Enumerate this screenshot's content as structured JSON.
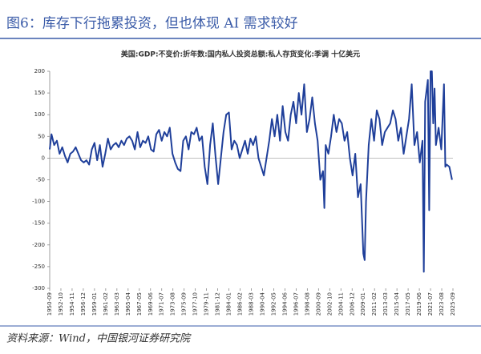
{
  "header": "图6：库存下行拖累投资，但也体现 AI 需求较好",
  "source": "资料来源：Wind，中国银河证券研究院",
  "chart_data": {
    "type": "line",
    "title": "美国:GDP:不变价:折年数:国内私人投资总额:私人存货变化:季调 十亿美元",
    "x": [
      1950.67,
      1951,
      1951.5,
      1952,
      1952.5,
      1953,
      1953.5,
      1954,
      1954.5,
      1955,
      1955.5,
      1956,
      1956.5,
      1957,
      1957.5,
      1958,
      1958.5,
      1959,
      1959.5,
      1960,
      1960.5,
      1961,
      1961.5,
      1962,
      1962.5,
      1963,
      1963.5,
      1964,
      1964.5,
      1965,
      1965.5,
      1966,
      1966.5,
      1967,
      1967.5,
      1968,
      1968.5,
      1969,
      1969.5,
      1970,
      1970.5,
      1971,
      1971.5,
      1972,
      1972.5,
      1973,
      1973.5,
      1974,
      1974.5,
      1975,
      1975.5,
      1976,
      1976.5,
      1977,
      1977.5,
      1978,
      1978.5,
      1979,
      1979.5,
      1980,
      1980.5,
      1981,
      1981.5,
      1982,
      1982.5,
      1983,
      1983.5,
      1984,
      1984.5,
      1985,
      1985.5,
      1986,
      1986.5,
      1987,
      1987.5,
      1988,
      1988.5,
      1989,
      1989.5,
      1990,
      1990.5,
      1991,
      1991.5,
      1992,
      1992.5,
      1993,
      1993.5,
      1994,
      1994.5,
      1995,
      1995.5,
      1996,
      1996.5,
      1997,
      1997.5,
      1998,
      1998.5,
      1999,
      1999.5,
      2000,
      2000.5,
      2001,
      2001.5,
      2001.75,
      2002,
      2002.5,
      2003,
      2003.5,
      2004,
      2004.5,
      2005,
      2005.5,
      2006,
      2006.5,
      2007,
      2007.5,
      2008,
      2008.5,
      2009,
      2009.25,
      2009.5,
      2010,
      2010.5,
      2011,
      2011.5,
      2012,
      2012.5,
      2013,
      2013.5,
      2014,
      2014.5,
      2015,
      2015.5,
      2016,
      2016.5,
      2017,
      2017.5,
      2018,
      2018.5,
      2019,
      2019.5,
      2020,
      2020.25,
      2020.5,
      2021,
      2021.25,
      2021.5,
      2021.75,
      2022,
      2022.25,
      2022.5,
      2023,
      2023.5,
      2024,
      2024.25,
      2024.5,
      2025,
      2025.5
    ],
    "series": [
      {
        "color": "#1f3f9a",
        "values": [
          20,
          55,
          30,
          40,
          10,
          25,
          5,
          -10,
          10,
          15,
          25,
          10,
          -5,
          -10,
          -5,
          -15,
          20,
          35,
          -5,
          30,
          -20,
          10,
          45,
          20,
          30,
          35,
          25,
          40,
          30,
          45,
          50,
          40,
          20,
          60,
          25,
          40,
          35,
          50,
          20,
          15,
          55,
          65,
          40,
          60,
          50,
          70,
          10,
          -10,
          -25,
          -30,
          40,
          50,
          20,
          60,
          55,
          70,
          40,
          50,
          -20,
          -60,
          30,
          80,
          5,
          -60,
          0,
          60,
          100,
          105,
          20,
          40,
          30,
          0,
          20,
          40,
          10,
          45,
          30,
          50,
          0,
          -20,
          -40,
          0,
          40,
          90,
          50,
          100,
          40,
          120,
          60,
          40,
          100,
          130,
          80,
          150,
          100,
          170,
          60,
          90,
          140,
          80,
          40,
          -50,
          -30,
          -115,
          30,
          10,
          50,
          100,
          60,
          90,
          80,
          40,
          60,
          0,
          -40,
          10,
          -90,
          -60,
          -220,
          -235,
          -100,
          30,
          90,
          40,
          110,
          90,
          30,
          60,
          70,
          80,
          110,
          90,
          40,
          70,
          10,
          50,
          90,
          170,
          30,
          60,
          -10,
          40,
          -262,
          130,
          180,
          -120,
          200,
          200,
          80,
          160,
          30,
          70,
          20,
          170,
          -20,
          -15,
          -20,
          -50
        ]
      }
    ],
    "xlim": [
      1950.667,
      2025.667
    ],
    "xticks": [
      {
        "value": 1950.667,
        "label": "1950-09"
      },
      {
        "value": 1952.75,
        "label": "1952-10"
      },
      {
        "value": 1954.833,
        "label": "1954-11"
      },
      {
        "value": 1956.917,
        "label": "1956-12"
      },
      {
        "value": 1959.0,
        "label": "1959-01"
      },
      {
        "value": 1961.083,
        "label": "1961-02"
      },
      {
        "value": 1963.167,
        "label": "1963-03"
      },
      {
        "value": 1965.25,
        "label": "1965-04"
      },
      {
        "value": 1967.333,
        "label": "1967-05"
      },
      {
        "value": 1969.417,
        "label": "1969-06"
      },
      {
        "value": 1971.5,
        "label": "1971-07"
      },
      {
        "value": 1973.583,
        "label": "1973-08"
      },
      {
        "value": 1975.667,
        "label": "1975-09"
      },
      {
        "value": 1977.75,
        "label": "1977-10"
      },
      {
        "value": 1979.833,
        "label": "1979-11"
      },
      {
        "value": 1981.917,
        "label": "1981-12"
      },
      {
        "value": 1984.0,
        "label": "1984-01"
      },
      {
        "value": 1986.083,
        "label": "1986-02"
      },
      {
        "value": 1988.167,
        "label": "1988-03"
      },
      {
        "value": 1990.25,
        "label": "1990-04"
      },
      {
        "value": 1992.333,
        "label": "1992-05"
      },
      {
        "value": 1994.417,
        "label": "1994-06"
      },
      {
        "value": 1996.5,
        "label": "1996-07"
      },
      {
        "value": 1998.583,
        "label": "1998-08"
      },
      {
        "value": 2000.667,
        "label": "2000-09"
      },
      {
        "value": 2002.75,
        "label": "2002-10"
      },
      {
        "value": 2004.833,
        "label": "2004-11"
      },
      {
        "value": 2006.917,
        "label": "2006-12"
      },
      {
        "value": 2009.0,
        "label": "2009-01"
      },
      {
        "value": 2011.083,
        "label": "2011-02"
      },
      {
        "value": 2013.167,
        "label": "2013-03"
      },
      {
        "value": 2015.25,
        "label": "2015-04"
      },
      {
        "value": 2017.333,
        "label": "2017-05"
      },
      {
        "value": 2019.417,
        "label": "2019-06"
      },
      {
        "value": 2021.5,
        "label": "2021-07"
      },
      {
        "value": 2023.583,
        "label": "2023-08"
      },
      {
        "value": 2025.667,
        "label": "2025-09"
      }
    ],
    "ylim": [
      -300,
      200
    ],
    "yticks": [
      -300,
      -250,
      -200,
      -150,
      -100,
      -50,
      0,
      50,
      100,
      150,
      200
    ]
  }
}
